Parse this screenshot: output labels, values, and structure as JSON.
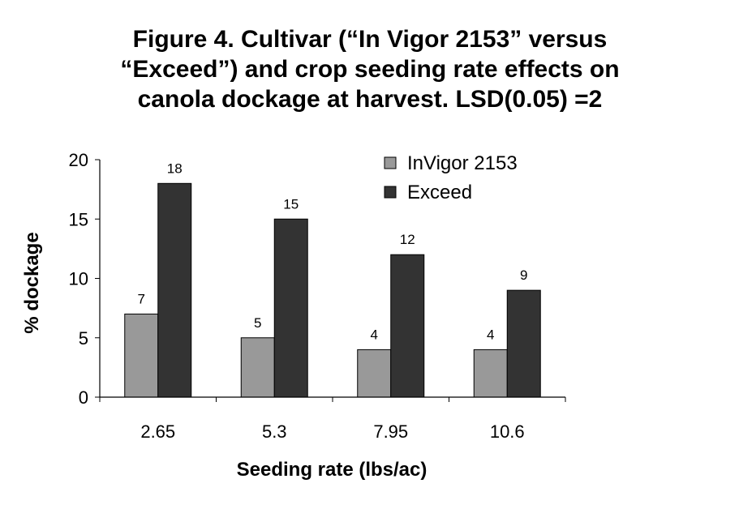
{
  "chart_data": {
    "type": "bar",
    "title_lines": [
      "Figure 4. Cultivar (“In Vigor 2153” versus",
      "“Exceed”) and crop seeding rate effects on",
      "canola dockage at harvest. LSD(0.05) =2"
    ],
    "xlabel": "Seeding rate (lbs/ac)",
    "ylabel": "% dockage",
    "categories": [
      "2.65",
      "5.3",
      "7.95",
      "10.6"
    ],
    "ylim": [
      0,
      20
    ],
    "yticks": [
      0,
      5,
      10,
      15,
      20
    ],
    "grid": false,
    "legend_position": "top-right",
    "series": [
      {
        "name": "InVigor 2153",
        "values": [
          7,
          5,
          4,
          4
        ],
        "color": "#999999"
      },
      {
        "name": "Exceed",
        "values": [
          18,
          15,
          12,
          9
        ],
        "color": "#333333"
      }
    ]
  }
}
